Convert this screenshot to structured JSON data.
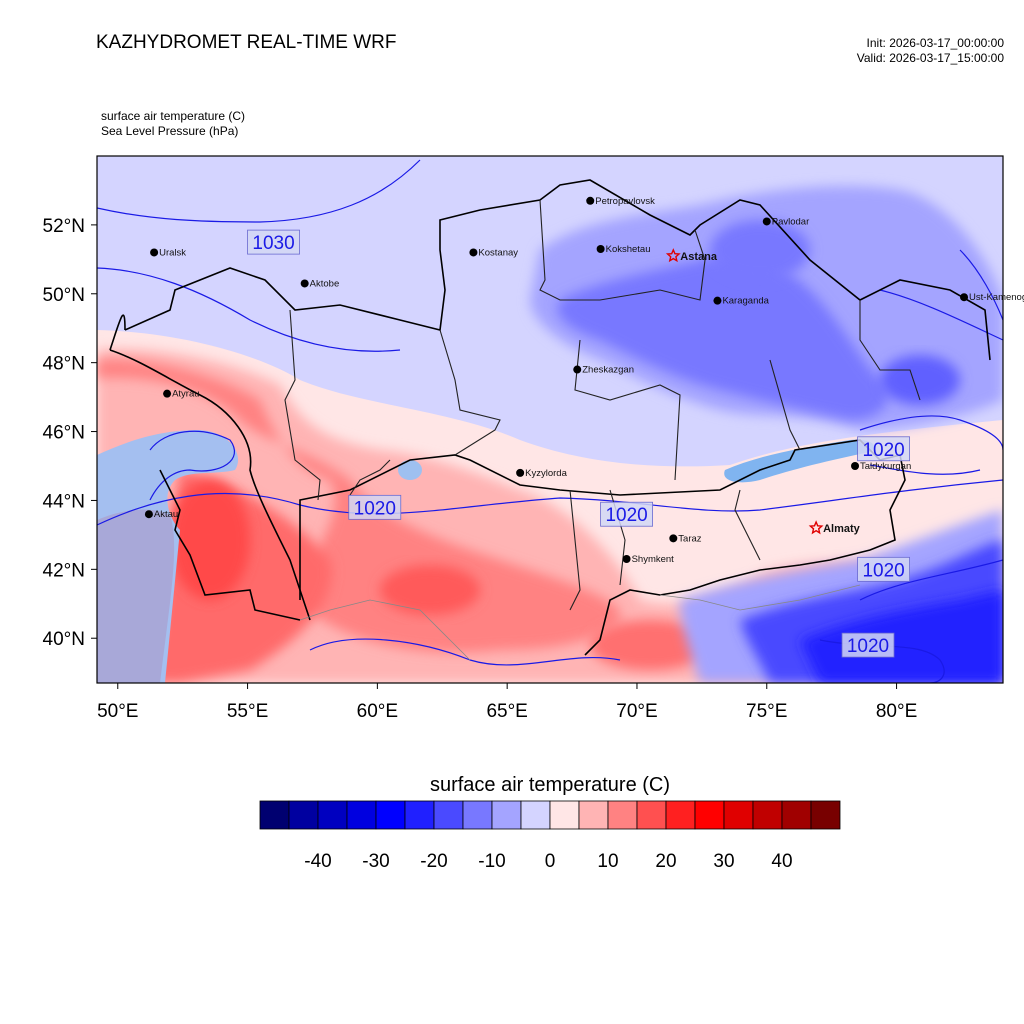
{
  "header": {
    "title": "KAZHYDROMET REAL-TIME WRF",
    "init": "Init: 2026-03-17_00:00:00",
    "valid": "Valid: 2026-03-17_15:00:00",
    "variable_line1": "surface air temperature   (C)",
    "variable_line2": "Sea Level Pressure   (hPa)"
  },
  "map": {
    "lon_range": [
      49.2,
      84.1
    ],
    "lat_range": [
      38.7,
      54.0
    ],
    "x_ticks": [
      {
        "lon": 50,
        "label": "50°E"
      },
      {
        "lon": 55,
        "label": "55°E"
      },
      {
        "lon": 60,
        "label": "60°E"
      },
      {
        "lon": 65,
        "label": "65°E"
      },
      {
        "lon": 70,
        "label": "70°E"
      },
      {
        "lon": 75,
        "label": "75°E"
      },
      {
        "lon": 80,
        "label": "80°E"
      }
    ],
    "y_ticks": [
      {
        "lat": 52,
        "label": "52°N"
      },
      {
        "lat": 50,
        "label": "50°N"
      },
      {
        "lat": 48,
        "label": "48°N"
      },
      {
        "lat": 46,
        "label": "46°N"
      },
      {
        "lat": 44,
        "label": "44°N"
      },
      {
        "lat": 42,
        "label": "42°N"
      },
      {
        "lat": 40,
        "label": "40°N"
      }
    ],
    "cities": [
      {
        "name": "Petropavlovsk",
        "lon": 68.2,
        "lat": 52.7,
        "capital": false
      },
      {
        "name": "Kostanay",
        "lon": 63.7,
        "lat": 51.2,
        "capital": false
      },
      {
        "name": "Kokshetau",
        "lon": 68.6,
        "lat": 51.3,
        "capital": false
      },
      {
        "name": "Pavlodar",
        "lon": 75.0,
        "lat": 52.1,
        "capital": false
      },
      {
        "name": "Uralsk",
        "lon": 51.4,
        "lat": 51.2,
        "capital": false
      },
      {
        "name": "Astana",
        "lon": 71.4,
        "lat": 51.1,
        "capital": true
      },
      {
        "name": "Aktobe",
        "lon": 57.2,
        "lat": 50.3,
        "capital": false
      },
      {
        "name": "Ust-Kamenogorsk",
        "lon": 82.6,
        "lat": 49.9,
        "capital": false
      },
      {
        "name": "Karaganda",
        "lon": 73.1,
        "lat": 49.8,
        "capital": false
      },
      {
        "name": "Atyrau",
        "lon": 51.9,
        "lat": 47.1,
        "capital": false
      },
      {
        "name": "Zheskazgan",
        "lon": 67.7,
        "lat": 47.8,
        "capital": false
      },
      {
        "name": "Taldykurgan",
        "lon": 78.4,
        "lat": 45.0,
        "capital": false
      },
      {
        "name": "Kyzylorda",
        "lon": 65.5,
        "lat": 44.8,
        "capital": false
      },
      {
        "name": "Aktau",
        "lon": 51.2,
        "lat": 43.6,
        "capital": false
      },
      {
        "name": "Almaty",
        "lon": 76.9,
        "lat": 43.2,
        "capital": true
      },
      {
        "name": "Taraz",
        "lon": 71.4,
        "lat": 42.9,
        "capital": false
      },
      {
        "name": "Shymkent",
        "lon": 69.6,
        "lat": 42.3,
        "capital": false
      }
    ],
    "isobar_labels": [
      {
        "text": "1030",
        "lon": 56.0,
        "lat": 51.5
      },
      {
        "text": "1020",
        "lon": 59.9,
        "lat": 43.8
      },
      {
        "text": "1020",
        "lon": 69.6,
        "lat": 43.6
      },
      {
        "text": "1020",
        "lon": 79.5,
        "lat": 45.5
      },
      {
        "text": "1020",
        "lon": 79.5,
        "lat": 42.0
      },
      {
        "text": "1020",
        "lon": 78.9,
        "lat": 39.8
      }
    ]
  },
  "colorbar": {
    "title": "surface air temperature  (C)",
    "colors": [
      "#000070",
      "#0000a0",
      "#0000c0",
      "#0000e0",
      "#0000ff",
      "#2020ff",
      "#4a4aff",
      "#7878ff",
      "#a4a4ff",
      "#d4d4ff",
      "#ffe6e6",
      "#ffb4b4",
      "#ff8282",
      "#ff5050",
      "#ff2020",
      "#ff0000",
      "#e00000",
      "#c00000",
      "#a00000",
      "#780000"
    ],
    "tick_labels": [
      "-40",
      "-30",
      "-20",
      "-10",
      "0",
      "10",
      "20",
      "30",
      "40"
    ]
  },
  "colors": {
    "isobar": "#1a1ae6",
    "border": "#000000"
  }
}
